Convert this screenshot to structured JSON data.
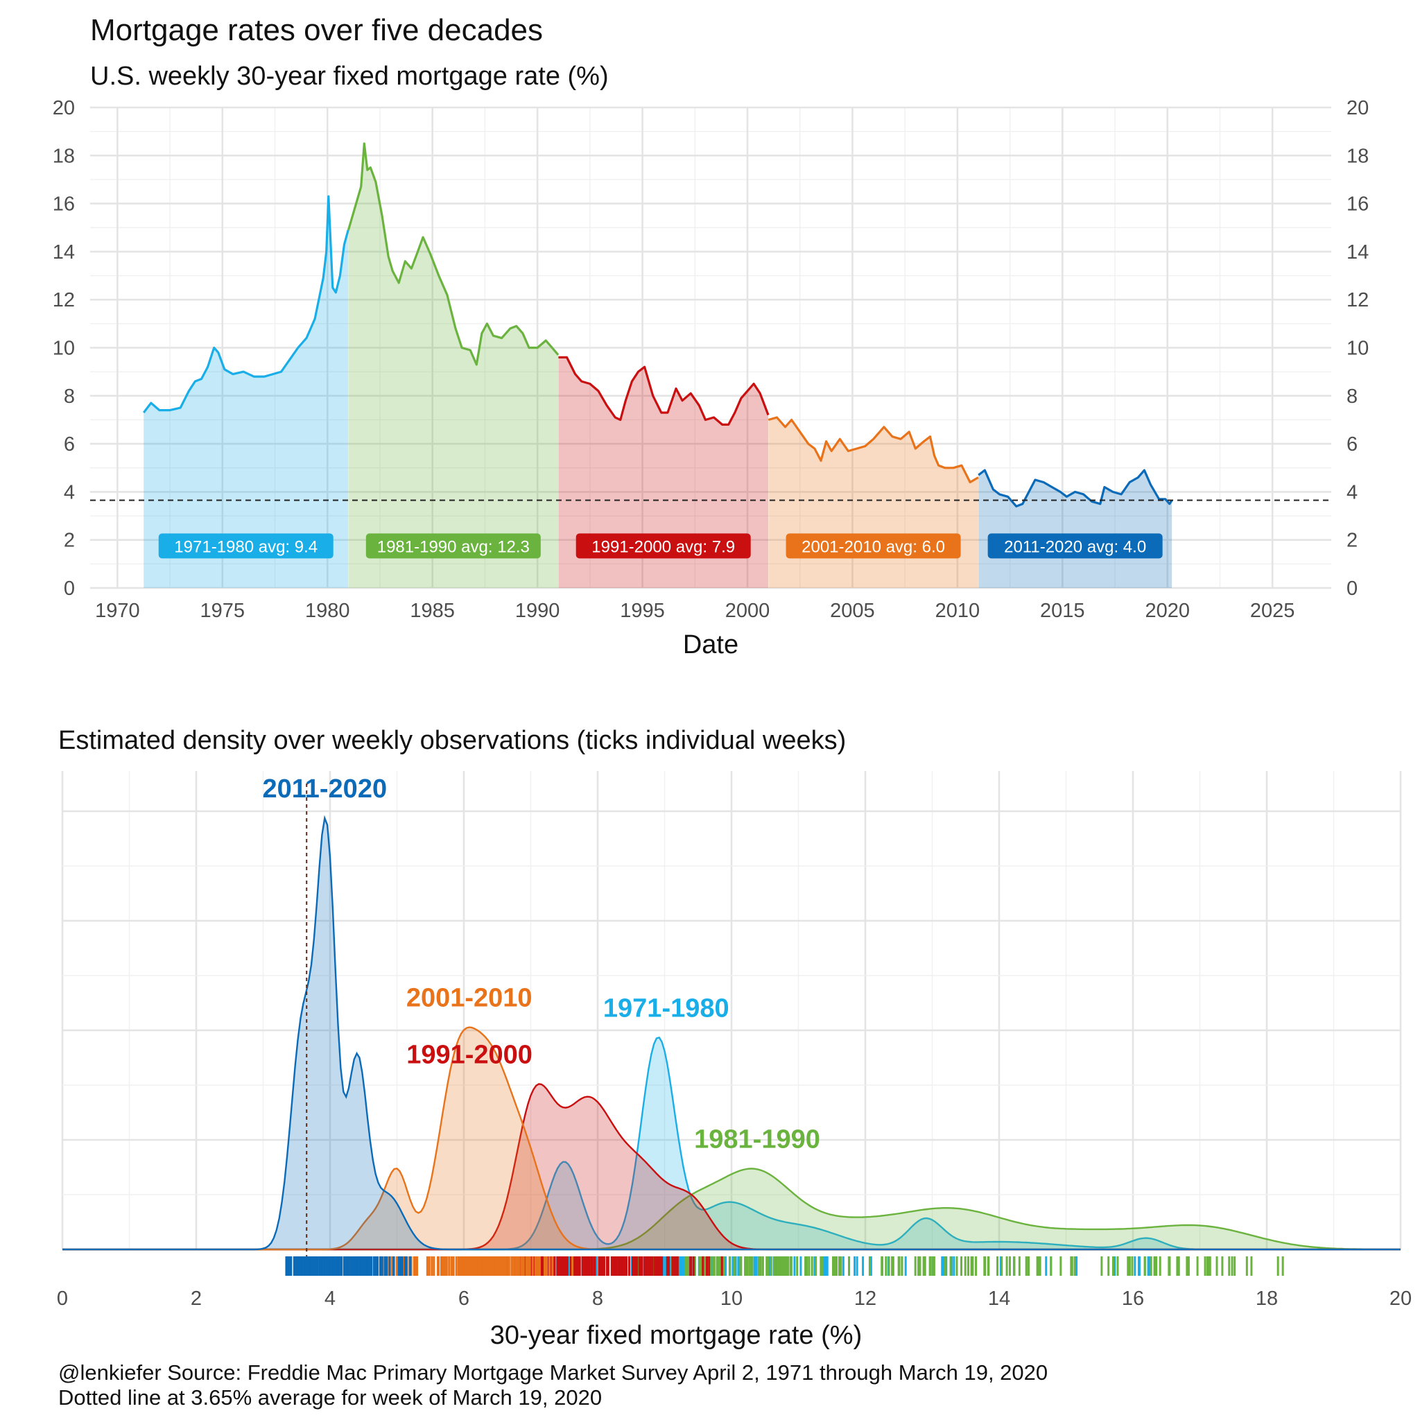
{
  "header": {
    "title": "Mortgage rates over five decades",
    "subtitle": "U.S. weekly 30-year fixed mortgage rate (%)"
  },
  "caption": {
    "line1": "@lenkiefer Source: Freddie Mac Primary Mortgage Market Survey April 2, 1971 through March 19, 2020",
    "line2": "Dotted line at 3.65% average for week of March 19, 2020"
  },
  "chart_data": [
    {
      "type": "area",
      "title": "Mortgage rates over five decades",
      "subtitle": "U.S. weekly 30-year fixed mortgage rate (%)",
      "xlabel": "Date",
      "ylabel": "",
      "xlim": [
        1968.7,
        2027.8
      ],
      "ylim": [
        0,
        20
      ],
      "x_ticks": [
        "1970",
        "1975",
        "1980",
        "1985",
        "1990",
        "1995",
        "2000",
        "2005",
        "2010",
        "2015",
        "2020",
        "2025"
      ],
      "y_ticks": [
        "0",
        "2",
        "4",
        "6",
        "8",
        "10",
        "12",
        "14",
        "16",
        "18",
        "20"
      ],
      "y_axis_right": true,
      "reference_line": {
        "y": 3.65,
        "style": "dashed"
      },
      "grid": true,
      "series": [
        {
          "name": "1971-1980",
          "color": "#1aaee8",
          "avg_label": "1971-1980 avg:  9.4",
          "x": [
            1971.25,
            1971.6,
            1972.0,
            1972.5,
            1973.0,
            1973.4,
            1973.7,
            1974.0,
            1974.3,
            1974.6,
            1974.8,
            1975.1,
            1975.5,
            1976.0,
            1976.5,
            1977.0,
            1977.4,
            1977.8,
            1978.2,
            1978.6,
            1979.0,
            1979.4,
            1979.8,
            1979.95,
            1980.05,
            1980.25,
            1980.4,
            1980.6,
            1980.8,
            1980.99
          ],
          "y": [
            7.3,
            7.7,
            7.4,
            7.4,
            7.5,
            8.2,
            8.6,
            8.7,
            9.2,
            10.0,
            9.8,
            9.1,
            8.9,
            9.0,
            8.8,
            8.8,
            8.9,
            9.0,
            9.5,
            10.0,
            10.4,
            11.2,
            12.9,
            14.0,
            16.3,
            12.5,
            12.3,
            13.0,
            14.3,
            14.9
          ]
        },
        {
          "name": "1981-1990",
          "color": "#6ab33e",
          "avg_label": "1981-1990 avg: 12.3",
          "x": [
            1981.0,
            1981.3,
            1981.6,
            1981.75,
            1981.9,
            1982.05,
            1982.3,
            1982.6,
            1982.9,
            1983.1,
            1983.4,
            1983.7,
            1984.0,
            1984.3,
            1984.55,
            1984.9,
            1985.3,
            1985.7,
            1986.1,
            1986.4,
            1986.8,
            1987.1,
            1987.35,
            1987.6,
            1987.9,
            1988.3,
            1988.7,
            1989.0,
            1989.3,
            1989.6,
            1990.0,
            1990.4,
            1990.7,
            1990.99
          ],
          "y": [
            14.9,
            15.8,
            16.7,
            18.5,
            17.4,
            17.5,
            16.9,
            15.5,
            13.8,
            13.2,
            12.7,
            13.6,
            13.3,
            14.0,
            14.6,
            13.9,
            13.0,
            12.2,
            10.8,
            10.0,
            9.9,
            9.3,
            10.6,
            11.0,
            10.5,
            10.4,
            10.8,
            10.9,
            10.6,
            10.0,
            10.0,
            10.3,
            10.0,
            9.7
          ]
        },
        {
          "name": "1991-2000",
          "color": "#c90f10",
          "avg_label": "1991-2000 avg:  7.9",
          "x": [
            1991.0,
            1991.4,
            1991.8,
            1992.1,
            1992.5,
            1992.9,
            1993.3,
            1993.7,
            1993.95,
            1994.2,
            1994.5,
            1994.8,
            1995.1,
            1995.5,
            1995.9,
            1996.2,
            1996.6,
            1996.9,
            1997.3,
            1997.7,
            1998.0,
            1998.4,
            1998.8,
            1999.1,
            1999.4,
            1999.7,
            2000.0,
            2000.3,
            2000.6,
            2000.99
          ],
          "y": [
            9.6,
            9.6,
            8.9,
            8.6,
            8.5,
            8.2,
            7.6,
            7.1,
            7.0,
            7.8,
            8.6,
            9.0,
            9.2,
            8.0,
            7.3,
            7.3,
            8.3,
            7.8,
            8.1,
            7.6,
            7.0,
            7.1,
            6.8,
            6.8,
            7.3,
            7.9,
            8.2,
            8.5,
            8.1,
            7.2
          ]
        },
        {
          "name": "2001-2010",
          "color": "#e8731a",
          "avg_label": "2001-2010 avg:  6.0",
          "x": [
            2001.0,
            2001.4,
            2001.8,
            2002.1,
            2002.5,
            2002.9,
            2003.2,
            2003.5,
            2003.75,
            2004.0,
            2004.4,
            2004.8,
            2005.2,
            2005.6,
            2006.0,
            2006.5,
            2006.9,
            2007.3,
            2007.7,
            2008.0,
            2008.4,
            2008.7,
            2008.9,
            2009.1,
            2009.4,
            2009.8,
            2010.2,
            2010.6,
            2010.99
          ],
          "y": [
            7.0,
            7.1,
            6.7,
            7.0,
            6.5,
            6.0,
            5.8,
            5.3,
            6.1,
            5.7,
            6.2,
            5.7,
            5.8,
            5.9,
            6.2,
            6.7,
            6.3,
            6.2,
            6.5,
            5.8,
            6.1,
            6.3,
            5.5,
            5.1,
            5.0,
            5.0,
            5.1,
            4.4,
            4.6
          ]
        },
        {
          "name": "2011-2020",
          "color": "#0b6bb8",
          "avg_label": "2011-2020 avg:  4.0",
          "x": [
            2011.0,
            2011.3,
            2011.7,
            2012.0,
            2012.4,
            2012.8,
            2013.1,
            2013.4,
            2013.7,
            2014.1,
            2014.5,
            2014.9,
            2015.2,
            2015.6,
            2016.0,
            2016.4,
            2016.8,
            2017.0,
            2017.4,
            2017.8,
            2018.2,
            2018.6,
            2018.9,
            2019.2,
            2019.6,
            2019.9,
            2020.1,
            2020.21
          ],
          "y": [
            4.7,
            4.9,
            4.1,
            3.9,
            3.8,
            3.4,
            3.5,
            4.0,
            4.5,
            4.4,
            4.2,
            4.0,
            3.8,
            4.0,
            3.9,
            3.6,
            3.5,
            4.2,
            4.0,
            3.9,
            4.4,
            4.6,
            4.9,
            4.3,
            3.7,
            3.7,
            3.5,
            3.65
          ]
        }
      ]
    },
    {
      "type": "area",
      "title": "Estimated density over weekly observations (ticks individual weeks)",
      "xlabel": "30-year fixed mortgage rate (%)",
      "ylabel": "",
      "xlim": [
        0,
        20
      ],
      "x_ticks": [
        "0",
        "2",
        "4",
        "6",
        "8",
        "10",
        "12",
        "14",
        "16",
        "18",
        "20"
      ],
      "y_ticks_shown": false,
      "reference_line": {
        "x": 3.65,
        "style": "dotted"
      },
      "rug": true,
      "grid": true,
      "series": [
        {
          "name": "1971-1980",
          "color": "#1aaee8",
          "components": [
            {
              "mean": 7.5,
              "sd": 0.25,
              "weight": 0.16
            },
            {
              "mean": 8.9,
              "sd": 0.25,
              "weight": 0.38
            },
            {
              "mean": 9.9,
              "sd": 0.45,
              "weight": 0.14
            },
            {
              "mean": 11.0,
              "sd": 0.6,
              "weight": 0.1
            },
            {
              "mean": 12.9,
              "sd": 0.25,
              "weight": 0.05
            },
            {
              "mean": 14.0,
              "sd": 0.9,
              "weight": 0.05
            },
            {
              "mean": 16.2,
              "sd": 0.25,
              "weight": 0.02
            }
          ]
        },
        {
          "name": "1981-1990",
          "color": "#6ab33e",
          "components": [
            {
              "mean": 9.3,
              "sd": 0.45,
              "weight": 0.12
            },
            {
              "mean": 10.3,
              "sd": 0.55,
              "weight": 0.28
            },
            {
              "mean": 11.5,
              "sd": 0.8,
              "weight": 0.14
            },
            {
              "mean": 13.3,
              "sd": 0.85,
              "weight": 0.24
            },
            {
              "mean": 15.3,
              "sd": 0.8,
              "weight": 0.09
            },
            {
              "mean": 17.0,
              "sd": 0.8,
              "weight": 0.13
            }
          ]
        },
        {
          "name": "1991-2000",
          "color": "#c90f10",
          "components": [
            {
              "mean": 7.05,
              "sd": 0.28,
              "weight": 0.28
            },
            {
              "mean": 7.85,
              "sd": 0.42,
              "weight": 0.45
            },
            {
              "mean": 8.7,
              "sd": 0.35,
              "weight": 0.17
            },
            {
              "mean": 9.4,
              "sd": 0.3,
              "weight": 0.1
            }
          ]
        },
        {
          "name": "2001-2010",
          "color": "#e8731a",
          "components": [
            {
              "mean": 4.6,
              "sd": 0.2,
              "weight": 0.04
            },
            {
              "mean": 5.0,
              "sd": 0.18,
              "weight": 0.1
            },
            {
              "mean": 5.9,
              "sd": 0.28,
              "weight": 0.36
            },
            {
              "mean": 6.4,
              "sd": 0.28,
              "weight": 0.3
            },
            {
              "mean": 6.9,
              "sd": 0.3,
              "weight": 0.2
            }
          ]
        },
        {
          "name": "2011-2020",
          "color": "#0b6bb8",
          "components": [
            {
              "mean": 3.6,
              "sd": 0.18,
              "weight": 0.3
            },
            {
              "mean": 3.95,
              "sd": 0.14,
              "weight": 0.4
            },
            {
              "mean": 4.4,
              "sd": 0.15,
              "weight": 0.2
            },
            {
              "mean": 4.85,
              "sd": 0.25,
              "weight": 0.1
            }
          ]
        }
      ]
    }
  ]
}
